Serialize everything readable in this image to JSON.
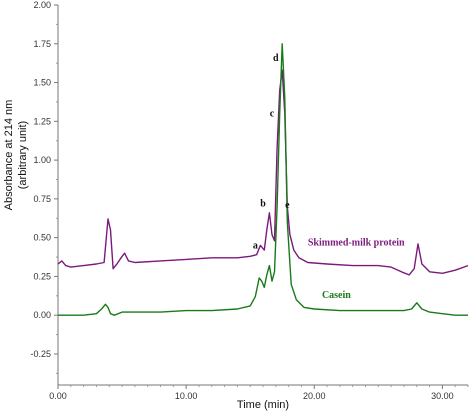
{
  "chart_data": {
    "type": "line",
    "xlabel": "Time (min)",
    "ylabel": [
      "Absorbance at 214 nm",
      "(arbitrary unit)"
    ],
    "xlim": [
      0,
      32
    ],
    "ylim": [
      -0.45,
      2.0
    ],
    "xticks": [
      "0.00",
      "10.00",
      "20.00",
      "30.00"
    ],
    "xtick_values": [
      0,
      10,
      20,
      30
    ],
    "yticks": [
      "-0.25",
      "0.00",
      "0.25",
      "0.50",
      "0.75",
      "1.00",
      "1.25",
      "1.50",
      "1.75",
      "2.00"
    ],
    "ytick_values": [
      -0.25,
      0,
      0.25,
      0.5,
      0.75,
      1.0,
      1.25,
      1.5,
      1.75,
      2.0
    ],
    "series": [
      {
        "name": "Skimmed-milk protein",
        "color": "#7b1a7b",
        "x": [
          0,
          0.3,
          0.6,
          1,
          2,
          3,
          3.6,
          3.9,
          4.1,
          4.3,
          4.6,
          5.0,
          5.2,
          5.5,
          6,
          8,
          10,
          12,
          14,
          15,
          15.5,
          15.8,
          16.1,
          16.3,
          16.5,
          16.7,
          16.9,
          17.1,
          17.3,
          17.5,
          17.7,
          17.9,
          18.1,
          18.4,
          18.8,
          19.5,
          21,
          23,
          25,
          26,
          26.8,
          27.4,
          27.8,
          28.1,
          28.4,
          29,
          30,
          31,
          32
        ],
        "y": [
          0.33,
          0.35,
          0.32,
          0.31,
          0.32,
          0.33,
          0.34,
          0.62,
          0.55,
          0.3,
          0.33,
          0.38,
          0.4,
          0.35,
          0.34,
          0.35,
          0.36,
          0.37,
          0.37,
          0.38,
          0.39,
          0.45,
          0.42,
          0.55,
          0.66,
          0.52,
          0.48,
          1.08,
          1.45,
          1.58,
          1.3,
          0.7,
          0.52,
          0.42,
          0.37,
          0.34,
          0.33,
          0.32,
          0.32,
          0.31,
          0.28,
          0.26,
          0.3,
          0.46,
          0.33,
          0.28,
          0.27,
          0.29,
          0.32
        ]
      },
      {
        "name": "Casein",
        "color": "#1a7a1a",
        "x": [
          0,
          1,
          2,
          3,
          3.4,
          3.7,
          3.9,
          4.1,
          4.4,
          5,
          6,
          8,
          10,
          12,
          14,
          15,
          15.4,
          15.7,
          15.9,
          16.1,
          16.3,
          16.5,
          16.7,
          16.9,
          17.1,
          17.3,
          17.5,
          17.7,
          17.9,
          18.2,
          18.6,
          19.2,
          20,
          22,
          24,
          26,
          27,
          27.6,
          28.0,
          28.4,
          29,
          30,
          31,
          32
        ],
        "y": [
          0.0,
          0.0,
          0.0,
          0.01,
          0.04,
          0.07,
          0.05,
          0.01,
          0.0,
          0.02,
          0.02,
          0.02,
          0.03,
          0.03,
          0.04,
          0.06,
          0.12,
          0.24,
          0.22,
          0.18,
          0.26,
          0.32,
          0.22,
          0.28,
          0.7,
          1.3,
          1.75,
          1.4,
          0.6,
          0.2,
          0.1,
          0.05,
          0.04,
          0.03,
          0.03,
          0.03,
          0.03,
          0.04,
          0.08,
          0.04,
          0.02,
          0.01,
          0.0,
          0.0
        ]
      }
    ],
    "series_labels": [
      {
        "text": "Skimmed-milk protein",
        "x": 19.5,
        "y": 0.45
      },
      {
        "text": "Casein",
        "x": 20.6,
        "y": 0.11
      }
    ],
    "peak_labels": [
      {
        "text": "a",
        "x": 15.4,
        "y": 0.43
      },
      {
        "text": "b",
        "x": 16.0,
        "y": 0.7
      },
      {
        "text": "c",
        "x": 16.7,
        "y": 1.28
      },
      {
        "text": "d",
        "x": 17.0,
        "y": 1.64
      },
      {
        "text": "e",
        "x": 17.9,
        "y": 0.69
      }
    ],
    "grid": false
  }
}
